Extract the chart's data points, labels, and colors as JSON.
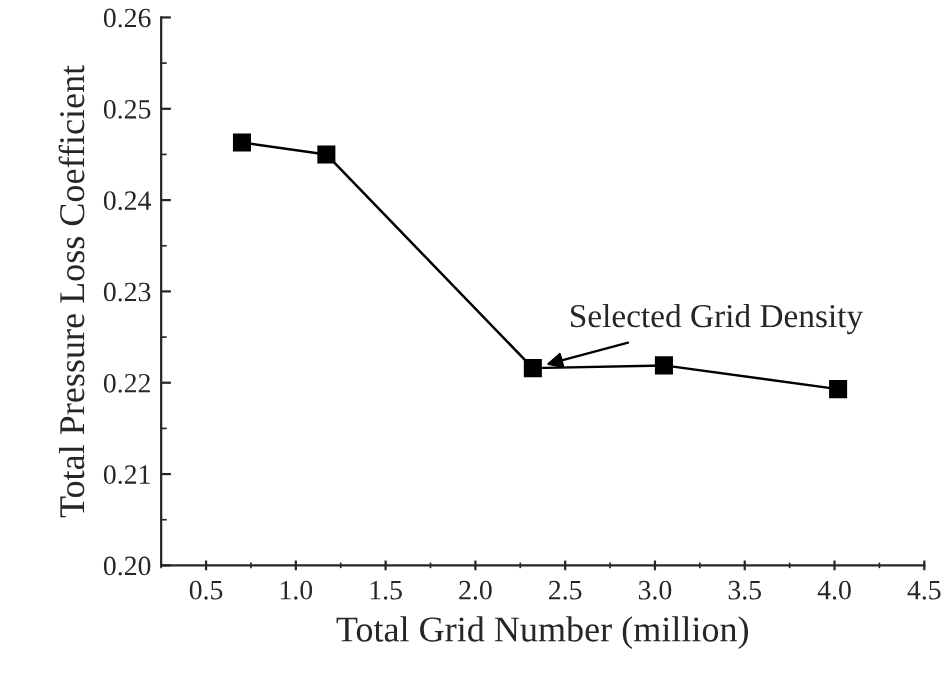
{
  "chart_data": {
    "type": "line",
    "xlabel": "Total Grid Number (million)",
    "ylabel": "Total Pressure Loss Coefficient",
    "x": [
      0.7,
      1.17,
      2.32,
      3.05,
      4.02
    ],
    "series": [
      {
        "color": "#000000",
        "values": [
          0.2463,
          0.245,
          0.2216,
          0.2219,
          0.2193
        ]
      }
    ],
    "xlim": [
      0.25,
      4.5
    ],
    "xticks": [
      {
        "value": 0.5,
        "label": "0.5"
      },
      {
        "value": 1.0,
        "label": "1.0"
      },
      {
        "value": 1.5,
        "label": "1.5"
      },
      {
        "value": 2.0,
        "label": "2.0"
      },
      {
        "value": 2.5,
        "label": "2.5"
      },
      {
        "value": 3.0,
        "label": "3.0"
      },
      {
        "value": 3.5,
        "label": "3.5"
      },
      {
        "value": 4.0,
        "label": "4.0"
      },
      {
        "value": 4.5,
        "label": "4.5"
      }
    ],
    "ylim": [
      0.2,
      0.26
    ],
    "yticks": [
      {
        "value": 0.2,
        "label": "0.20"
      },
      {
        "value": 0.21,
        "label": "0.21"
      },
      {
        "value": 0.22,
        "label": "0.22"
      },
      {
        "value": 0.23,
        "label": "0.23"
      },
      {
        "value": 0.24,
        "label": "0.24"
      },
      {
        "value": 0.25,
        "label": "0.25"
      },
      {
        "value": 0.26,
        "label": "0.26"
      }
    ],
    "annotations": [
      {
        "text": "Selected Grid Density",
        "x": 2.32,
        "y": 0.2216
      }
    ],
    "marker": "square",
    "line_style": "solid",
    "grid": false,
    "legend": false
  }
}
